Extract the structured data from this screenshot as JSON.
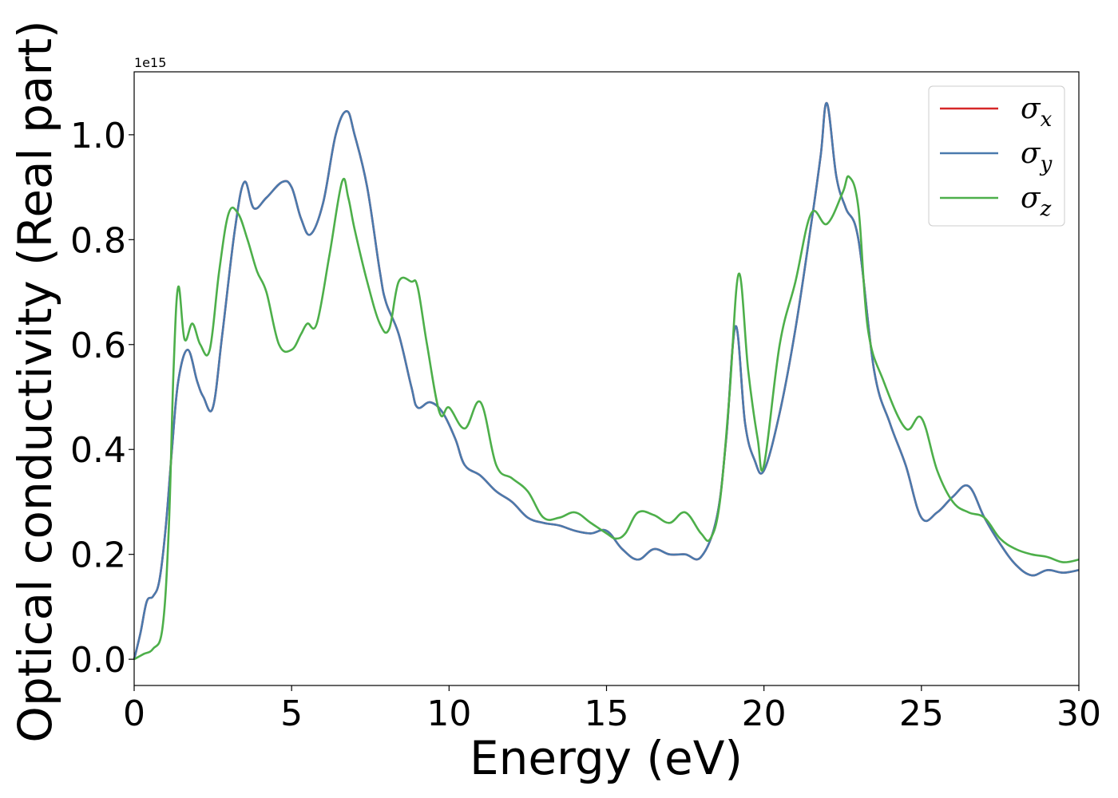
{
  "chart_data": {
    "type": "line",
    "title": "",
    "xlabel": "Energy (eV)",
    "ylabel": "Optical conductivity (Real part)",
    "y_offset_label": "1e15",
    "xlim": [
      0,
      30
    ],
    "ylim": [
      -0.05,
      1.12
    ],
    "xticks": [
      0,
      5,
      10,
      15,
      20,
      25,
      30
    ],
    "yticks": [
      0.0,
      0.2,
      0.4,
      0.6,
      0.8,
      1.0
    ],
    "xtick_labels": [
      "0",
      "5",
      "10",
      "15",
      "20",
      "25",
      "30"
    ],
    "ytick_labels": [
      "0.0",
      "0.2",
      "0.4",
      "0.6",
      "0.8",
      "1.0"
    ],
    "grid": false,
    "legend_position": "top-right",
    "legend": [
      {
        "symbol": "σ",
        "sub": "x",
        "color": "#d62728"
      },
      {
        "symbol": "σ",
        "sub": "y",
        "color": "#4a7aad"
      },
      {
        "symbol": "σ",
        "sub": "z",
        "color": "#4daf4a"
      }
    ],
    "series": [
      {
        "name": "σx",
        "color": "#d62728",
        "x": [
          0,
          0.2,
          0.4,
          0.6,
          0.8,
          1.0,
          1.2,
          1.4,
          1.7,
          2.0,
          2.2,
          2.5,
          2.8,
          3.2,
          3.5,
          3.8,
          4.2,
          4.7,
          5.0,
          5.3,
          5.6,
          6.0,
          6.4,
          6.75,
          7.0,
          7.4,
          7.8,
          8.0,
          8.4,
          8.8,
          9.0,
          9.4,
          9.8,
          10.2,
          10.5,
          11.0,
          11.5,
          12.0,
          12.5,
          13.0,
          13.5,
          14.0,
          14.5,
          15.0,
          15.5,
          16.0,
          16.5,
          17.0,
          17.5,
          18.0,
          18.5,
          18.8,
          19.1,
          19.4,
          19.7,
          20.0,
          20.5,
          21.0,
          21.5,
          21.8,
          22.0,
          22.3,
          22.6,
          23.0,
          23.5,
          24.0,
          24.5,
          25.0,
          25.5,
          26.0,
          26.5,
          27.0,
          27.5,
          28.0,
          28.5,
          29.0,
          29.5,
          30.0
        ],
        "y": [
          0.0,
          0.05,
          0.11,
          0.12,
          0.15,
          0.25,
          0.4,
          0.53,
          0.59,
          0.53,
          0.5,
          0.48,
          0.62,
          0.82,
          0.91,
          0.86,
          0.88,
          0.91,
          0.9,
          0.84,
          0.81,
          0.87,
          1.0,
          1.045,
          1.0,
          0.9,
          0.74,
          0.68,
          0.62,
          0.52,
          0.48,
          0.49,
          0.47,
          0.42,
          0.37,
          0.35,
          0.32,
          0.3,
          0.27,
          0.26,
          0.255,
          0.245,
          0.24,
          0.245,
          0.21,
          0.19,
          0.21,
          0.2,
          0.2,
          0.195,
          0.27,
          0.42,
          0.635,
          0.45,
          0.38,
          0.36,
          0.47,
          0.63,
          0.83,
          0.96,
          1.06,
          0.92,
          0.86,
          0.8,
          0.55,
          0.45,
          0.37,
          0.27,
          0.28,
          0.31,
          0.33,
          0.27,
          0.22,
          0.18,
          0.16,
          0.17,
          0.165,
          0.17
        ]
      },
      {
        "name": "σy",
        "color": "#4a7aad",
        "x": [
          0,
          0.2,
          0.4,
          0.6,
          0.8,
          1.0,
          1.2,
          1.4,
          1.7,
          2.0,
          2.2,
          2.5,
          2.8,
          3.2,
          3.5,
          3.8,
          4.2,
          4.7,
          5.0,
          5.3,
          5.6,
          6.0,
          6.4,
          6.75,
          7.0,
          7.4,
          7.8,
          8.0,
          8.4,
          8.8,
          9.0,
          9.4,
          9.8,
          10.2,
          10.5,
          11.0,
          11.5,
          12.0,
          12.5,
          13.0,
          13.5,
          14.0,
          14.5,
          15.0,
          15.5,
          16.0,
          16.5,
          17.0,
          17.5,
          18.0,
          18.5,
          18.8,
          19.1,
          19.4,
          19.7,
          20.0,
          20.5,
          21.0,
          21.5,
          21.8,
          22.0,
          22.3,
          22.6,
          23.0,
          23.5,
          24.0,
          24.5,
          25.0,
          25.5,
          26.0,
          26.5,
          27.0,
          27.5,
          28.0,
          28.5,
          29.0,
          29.5,
          30.0
        ],
        "y": [
          0.0,
          0.05,
          0.11,
          0.12,
          0.15,
          0.25,
          0.4,
          0.53,
          0.59,
          0.53,
          0.5,
          0.48,
          0.62,
          0.82,
          0.91,
          0.86,
          0.88,
          0.91,
          0.9,
          0.84,
          0.81,
          0.87,
          1.0,
          1.045,
          1.0,
          0.9,
          0.74,
          0.68,
          0.62,
          0.52,
          0.48,
          0.49,
          0.47,
          0.42,
          0.37,
          0.35,
          0.32,
          0.3,
          0.27,
          0.26,
          0.255,
          0.245,
          0.24,
          0.245,
          0.21,
          0.19,
          0.21,
          0.2,
          0.2,
          0.195,
          0.27,
          0.42,
          0.635,
          0.45,
          0.38,
          0.36,
          0.47,
          0.63,
          0.83,
          0.96,
          1.06,
          0.92,
          0.86,
          0.8,
          0.55,
          0.45,
          0.37,
          0.27,
          0.28,
          0.31,
          0.33,
          0.27,
          0.22,
          0.18,
          0.16,
          0.17,
          0.165,
          0.17
        ]
      },
      {
        "name": "σz",
        "color": "#4daf4a",
        "x": [
          0,
          0.3,
          0.6,
          0.9,
          1.1,
          1.25,
          1.4,
          1.6,
          1.85,
          2.1,
          2.4,
          2.7,
          3.0,
          3.3,
          3.6,
          3.9,
          4.2,
          4.6,
          5.0,
          5.3,
          5.5,
          5.8,
          6.2,
          6.6,
          6.8,
          7.0,
          7.4,
          7.8,
          8.1,
          8.4,
          8.8,
          9.0,
          9.3,
          9.7,
          10.0,
          10.5,
          11.0,
          11.5,
          12.0,
          12.5,
          13.0,
          13.5,
          14.0,
          14.5,
          15.0,
          15.3,
          15.6,
          16.0,
          16.5,
          17.0,
          17.5,
          18.0,
          18.3,
          18.6,
          18.9,
          19.2,
          19.5,
          19.8,
          20.0,
          20.5,
          21.0,
          21.5,
          22.0,
          22.5,
          22.7,
          23.0,
          23.3,
          23.8,
          24.5,
          25.0,
          25.5,
          26.0,
          26.5,
          27.0,
          27.5,
          28.0,
          28.5,
          29.0,
          29.5,
          30.0
        ],
        "y": [
          0.0,
          0.01,
          0.02,
          0.06,
          0.25,
          0.55,
          0.71,
          0.61,
          0.64,
          0.6,
          0.59,
          0.74,
          0.85,
          0.85,
          0.8,
          0.74,
          0.7,
          0.6,
          0.59,
          0.62,
          0.64,
          0.64,
          0.77,
          0.91,
          0.88,
          0.82,
          0.72,
          0.64,
          0.63,
          0.72,
          0.72,
          0.71,
          0.6,
          0.47,
          0.48,
          0.44,
          0.49,
          0.37,
          0.345,
          0.32,
          0.27,
          0.27,
          0.28,
          0.26,
          0.24,
          0.23,
          0.24,
          0.28,
          0.275,
          0.26,
          0.28,
          0.24,
          0.23,
          0.3,
          0.5,
          0.735,
          0.55,
          0.42,
          0.37,
          0.6,
          0.72,
          0.85,
          0.83,
          0.89,
          0.92,
          0.86,
          0.63,
          0.53,
          0.44,
          0.46,
          0.36,
          0.3,
          0.28,
          0.27,
          0.23,
          0.21,
          0.2,
          0.195,
          0.185,
          0.19
        ]
      }
    ]
  }
}
